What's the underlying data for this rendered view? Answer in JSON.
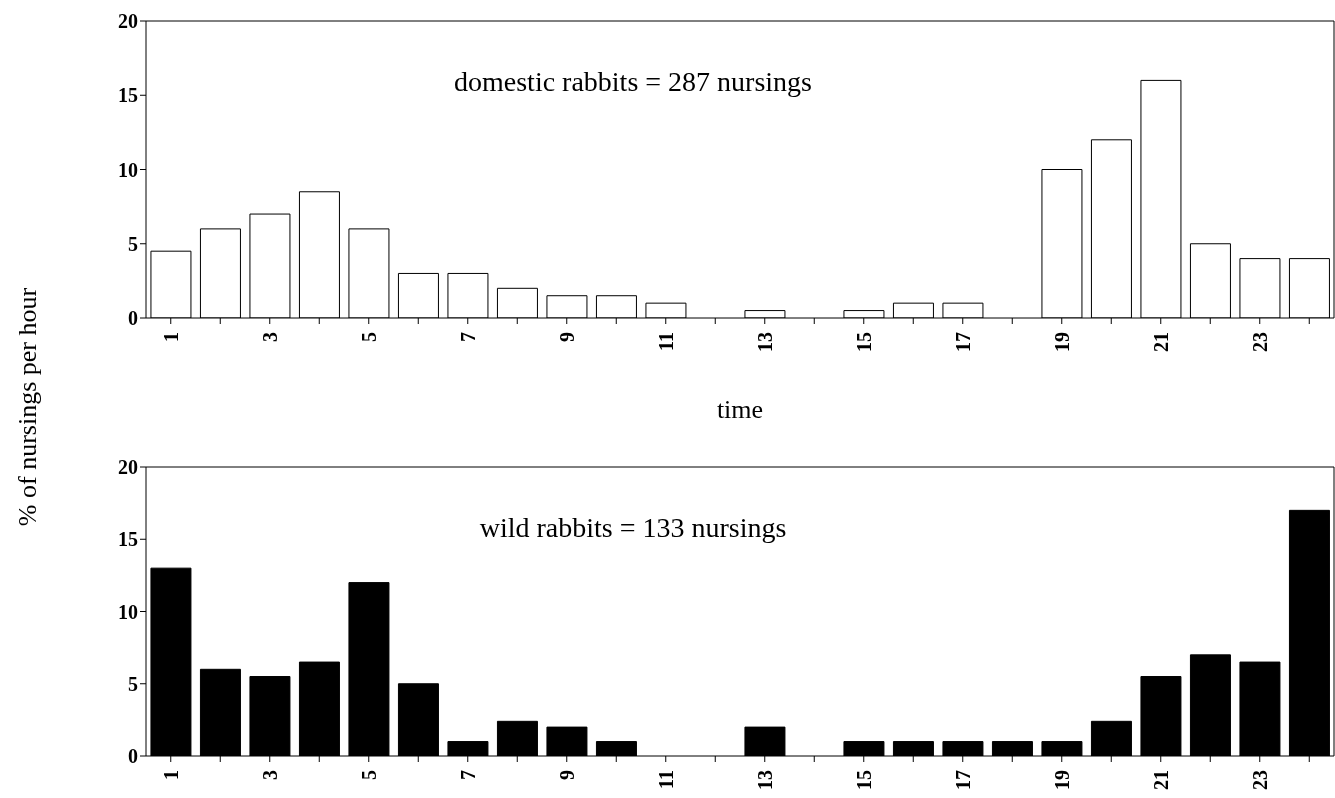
{
  "chart_data": [
    {
      "type": "bar",
      "xlabel": "time",
      "ylabel": "% of nursings per hour",
      "annotations": [
        "domestic rabbits = 287 nursings"
      ],
      "categories": [
        "1",
        null,
        "3",
        null,
        "5",
        null,
        "7",
        null,
        "9",
        null,
        "11",
        null,
        "13",
        null,
        "15",
        null,
        "17",
        null,
        "19",
        null,
        "21",
        null,
        "23",
        null
      ],
      "values": [
        4.5,
        6,
        7,
        8.5,
        6,
        3,
        3,
        2,
        1.5,
        1.5,
        1,
        0,
        0.5,
        0,
        0.5,
        1,
        1,
        0,
        10,
        12,
        16,
        5,
        4,
        4
      ],
      "color": "#ffffff",
      "ylim": [
        0,
        20
      ],
      "yticks": [
        0,
        5,
        10,
        15,
        20
      ],
      "grid": false,
      "legend": false
    },
    {
      "type": "bar",
      "annotations": [
        "wild rabbits = 133 nursings"
      ],
      "categories": [
        "1",
        null,
        "3",
        null,
        "5",
        null,
        "7",
        null,
        "9",
        null,
        "11",
        null,
        "13",
        null,
        "15",
        null,
        "17",
        null,
        "19",
        null,
        "21",
        null,
        "23",
        null
      ],
      "values": [
        13,
        6,
        5.5,
        6.5,
        12,
        5,
        1,
        2.4,
        2,
        1,
        0,
        0,
        2,
        0,
        1,
        1,
        1,
        1,
        1,
        2.4,
        5.5,
        7,
        6.5,
        17
      ],
      "color": "#000000",
      "ylim": [
        0,
        20
      ],
      "yticks": [
        0,
        5,
        10,
        15,
        20
      ],
      "grid": false,
      "legend": false
    }
  ]
}
